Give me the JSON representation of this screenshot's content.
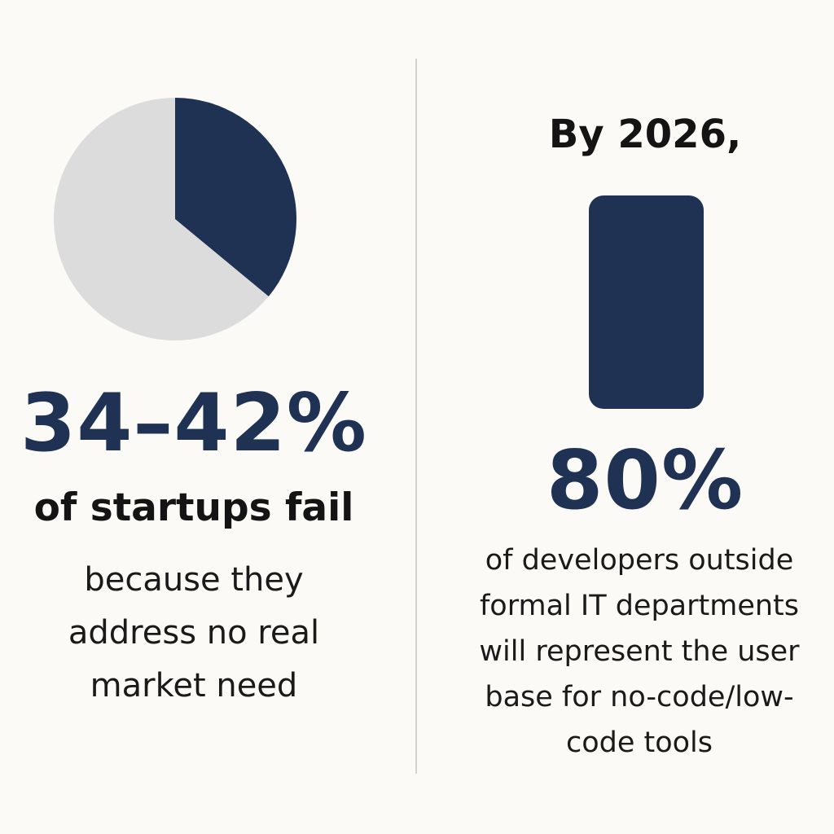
{
  "chart_data": [
    {
      "type": "pie",
      "title": "",
      "slices": [
        {
          "label": "fail (no market need)",
          "value": 36,
          "color": "#1f3254"
        },
        {
          "label": "other",
          "value": 64,
          "color": "#dcdcdc"
        }
      ]
    },
    {
      "type": "bar",
      "categories": [
        "developers outside formal IT"
      ],
      "values": [
        80
      ],
      "color": "#1f3254"
    }
  ],
  "left": {
    "stat": "34–42%",
    "subtitle": "of startups fail",
    "description": "because they address no real market need"
  },
  "right": {
    "title": "By 2026,",
    "stat": "80%",
    "description": "of developers outside formal IT departments will represent the user base for no-code/low-code tools"
  },
  "colors": {
    "accent": "#1f3254",
    "neutral": "#dcdcdc",
    "background": "#fbfaf7"
  }
}
